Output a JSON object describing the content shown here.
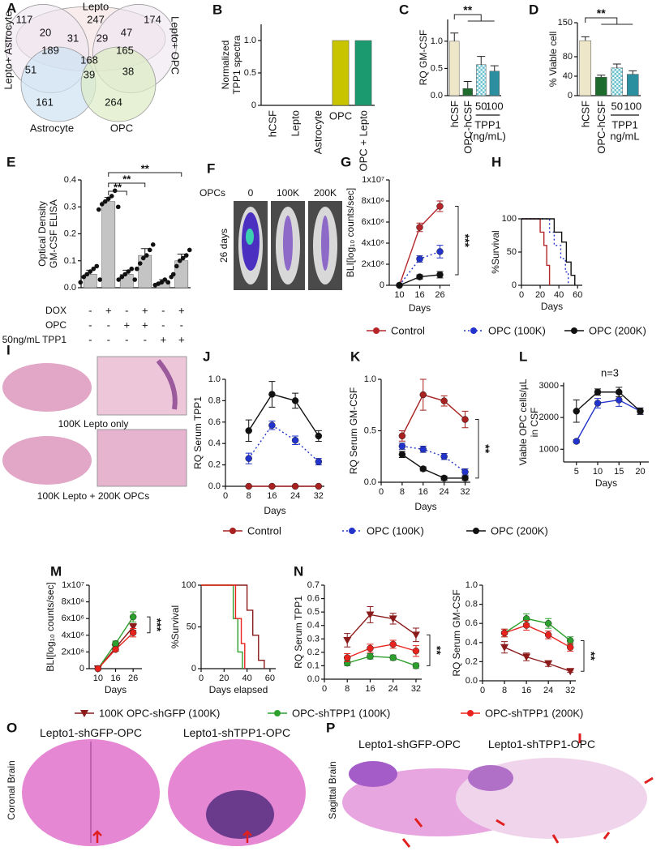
{
  "venn": {
    "panel": "A",
    "labels": [
      "Lepto",
      "Lepto+ Astrocyte",
      "Lepto+ OPC",
      "Astrocyte",
      "OPC"
    ],
    "counts": [
      117,
      247,
      174,
      20,
      31,
      29,
      47,
      189,
      165,
      168,
      51,
      39,
      38,
      161,
      264
    ]
  },
  "chart_data": [
    {
      "type": "bar",
      "panel": "B",
      "ylabel": [
        "Normalized",
        "TPP1 spectra"
      ],
      "categories": [
        "hCSF",
        "Lepto",
        "Astrocyte",
        "OPC",
        "OPC + Lepto"
      ],
      "values": [
        0,
        0,
        0,
        1,
        1
      ],
      "colors": [
        "#c8c400",
        "#c8c400",
        "#c8c400",
        "#c8c400",
        "#1a9a6e"
      ],
      "ylim": [
        0,
        1.25
      ],
      "yticks": [
        0,
        0.5,
        {
          "value": 1,
          "label": "1.0"
        }
      ]
    },
    {
      "type": "bar",
      "panel": "C",
      "ylabel": "RQ GM-CSF",
      "categories": [
        "hCSF",
        "OPC-hCSF",
        "50",
        "100"
      ],
      "values": [
        1.0,
        0.13,
        0.57,
        0.45
      ],
      "errors": [
        0.15,
        0.13,
        0.15,
        0.1
      ],
      "colors": [
        "#eee6c8",
        "#1e6b2e",
        "#6cc3cf",
        "#2c8f9f"
      ],
      "ylim": [
        0,
        1.4
      ],
      "yticks": [
        {
          "value": 0,
          "label": "0.0"
        },
        0.5,
        {
          "value": 1,
          "label": "1.0"
        }
      ],
      "group_label": [
        "TPP1",
        "(ng/mL)"
      ],
      "annotation": "**"
    },
    {
      "type": "bar",
      "panel": "D",
      "ylabel": "% Viable cell",
      "categories": [
        "hCSF",
        "OPC-hCSF",
        "50",
        "100"
      ],
      "values": [
        113,
        38,
        57,
        44
      ],
      "errors": [
        8,
        4,
        8,
        7
      ],
      "colors": [
        "#eee6c8",
        "#1e6b2e",
        "#6cc3cf",
        "#2c8f9f"
      ],
      "ylim": [
        0,
        150
      ],
      "yticks": [
        0,
        40,
        80,
        150
      ],
      "group_label": [
        "TPP1",
        "ng/mL"
      ],
      "annotation": "**"
    },
    {
      "type": "bar",
      "panel": "E",
      "ylabel": [
        "Optical Density",
        "GM-CSF ELISA"
      ],
      "values": [
        0.05,
        0.32,
        0.05,
        0.12,
        0.02,
        0.1
      ],
      "errors": [
        0.015,
        0.015,
        0.015,
        0.025,
        0.01,
        0.025
      ],
      "points": [
        [
          0.02,
          0.04,
          0.05,
          0.06,
          0.07,
          0.08,
          0.03
        ],
        [
          0.29,
          0.31,
          0.32,
          0.33,
          0.34,
          0.36,
          0.3
        ],
        [
          0.03,
          0.04,
          0.05,
          0.06,
          0.07,
          0.03
        ],
        [
          0.07,
          0.09,
          0.11,
          0.12,
          0.14,
          0.16
        ],
        [
          0.01,
          0.015,
          0.02,
          0.03,
          0.02,
          0.04
        ],
        [
          0.05,
          0.08,
          0.1,
          0.11,
          0.12,
          0.14
        ]
      ],
      "color": "#c4c4c4",
      "ylim": [
        0,
        0.4
      ],
      "yticks": [
        {
          "value": 0,
          "label": "0.0"
        },
        0.1,
        0.2,
        0.3,
        0.4
      ],
      "rows": [
        {
          "label": "DOX",
          "signs": [
            "-",
            "+",
            "-",
            "+",
            "-",
            "+"
          ]
        },
        {
          "label": "OPC",
          "signs": [
            "-",
            "-",
            "+",
            "+",
            "-",
            "-"
          ]
        },
        {
          "label": "50ng/mL TPP1",
          "signs": [
            "-",
            "-",
            "-",
            "-",
            "+",
            "+"
          ]
        }
      ],
      "annotations": [
        "**",
        "**",
        "**"
      ]
    },
    {
      "type": "line",
      "panel": "G",
      "ylabel": "BLI[log₁₀ counts/sec]",
      "xlabel": "Days",
      "categories": [
        "10",
        "16",
        "26"
      ],
      "series": [
        {
          "name": "Control",
          "color": "#b5262b",
          "values": [
            0,
            5500000,
            7500000
          ],
          "errors": [
            0,
            400000,
            500000
          ]
        },
        {
          "name": "OPC (100K)",
          "color": "#2233cc",
          "dash": true,
          "values": [
            0,
            2500000,
            3200000
          ],
          "errors": [
            0,
            300000,
            600000
          ]
        },
        {
          "name": "OPC (200K)",
          "color": "#111111",
          "values": [
            0,
            800000,
            1000000
          ],
          "errors": [
            0,
            200000,
            300000
          ]
        }
      ],
      "ylim": [
        0,
        10000000
      ],
      "yticks": [
        0,
        {
          "value": 2000000,
          "label": "2x10⁶"
        },
        {
          "value": 4000000,
          "label": "4x10⁶"
        },
        {
          "value": 6000000,
          "label": "6x10⁶"
        },
        {
          "value": 8000000,
          "label": "8x10⁶"
        },
        {
          "value": 10000000,
          "label": "1x10⁷"
        }
      ],
      "annotation": "***"
    },
    {
      "type": "step",
      "panel": "H",
      "ylabel": "%Survival",
      "xlabel": "Days",
      "series": [
        {
          "color": "#b5262b",
          "x": [
            0,
            20,
            20,
            24,
            24,
            27,
            27,
            30,
            30
          ],
          "values": [
            100,
            100,
            80,
            80,
            60,
            60,
            30,
            30,
            0
          ]
        },
        {
          "color": "#2233cc",
          "dash": true,
          "x": [
            0,
            30,
            30,
            35,
            35,
            42,
            42,
            47,
            47,
            50,
            50
          ],
          "values": [
            100,
            100,
            80,
            80,
            60,
            60,
            40,
            40,
            20,
            20,
            0
          ]
        },
        {
          "color": "#111111",
          "x": [
            0,
            35,
            35,
            43,
            43,
            48,
            48,
            53,
            53,
            57,
            57
          ],
          "values": [
            100,
            100,
            80,
            80,
            65,
            65,
            35,
            35,
            15,
            15,
            0
          ]
        }
      ],
      "xlim": [
        0,
        65
      ],
      "xticks": [
        0,
        20,
        40,
        60
      ],
      "ylim": [
        0,
        100
      ],
      "yticks": [
        0,
        50,
        100
      ]
    },
    {
      "type": "line",
      "panel": "J",
      "ylabel": "RQ Serum TPP1",
      "xlabel": "Days",
      "x": [
        8,
        16,
        24,
        32
      ],
      "series": [
        {
          "name": "Control",
          "color": "#a8201f",
          "values": [
            0,
            0,
            0,
            0
          ]
        },
        {
          "name": "OPC (100K)",
          "color": "#2233cc",
          "dash": true,
          "values": [
            0.26,
            0.57,
            0.43,
            0.23
          ],
          "errors": [
            0.05,
            0.04,
            0.04,
            0.03
          ]
        },
        {
          "name": "OPC (200K)",
          "color": "#111111",
          "values": [
            0.52,
            0.86,
            0.8,
            0.47
          ],
          "errors": [
            0.1,
            0.12,
            0.07,
            0.05
          ]
        }
      ],
      "xlim": [
        0,
        34
      ],
      "xticks": [
        0,
        8,
        16,
        24,
        32
      ],
      "ylim": [
        0,
        1.0
      ],
      "yticks": [
        {
          "value": 0,
          "label": "0.0"
        },
        0.2,
        0.4,
        0.6,
        0.8,
        {
          "value": 1,
          "label": "1.0"
        }
      ]
    },
    {
      "type": "line",
      "panel": "K",
      "ylabel": "RQ Serum GM-CSF",
      "xlabel": "Days",
      "x": [
        8,
        16,
        24,
        32
      ],
      "series": [
        {
          "color": "#a8201f",
          "values": [
            0.45,
            0.85,
            0.79,
            0.61
          ],
          "errors": [
            0.05,
            0.15,
            0.05,
            0.08
          ]
        },
        {
          "color": "#2233cc",
          "dash": true,
          "values": [
            0.35,
            0.32,
            0.25,
            0.1
          ],
          "errors": [
            0.03,
            0.03,
            0.03,
            0.03
          ]
        },
        {
          "color": "#111111",
          "values": [
            0.27,
            0.13,
            0.04,
            0.04
          ],
          "errors": [
            0.03,
            0.02,
            0.02,
            0.02
          ]
        }
      ],
      "xlim": [
        0,
        34
      ],
      "xticks": [
        0,
        8,
        16,
        24,
        32
      ],
      "ylim": [
        0,
        1.0
      ],
      "yticks": [
        {
          "value": 0,
          "label": "0.0"
        },
        0.5,
        {
          "value": 1,
          "label": "1.0"
        }
      ],
      "annotation": "**"
    },
    {
      "type": "line",
      "panel": "L",
      "ylabel": [
        "Viable OPC cells/µL",
        "in CSF"
      ],
      "xlabel": "Days",
      "x": [
        5,
        10,
        15,
        20
      ],
      "series": [
        {
          "color": "#2233cc",
          "values": [
            1250,
            2450,
            2550,
            2200
          ],
          "errors": [
            50,
            150,
            200,
            100
          ]
        },
        {
          "color": "#111111",
          "values": [
            2200,
            2800,
            2800,
            2200
          ],
          "errors": [
            350,
            100,
            150,
            100
          ]
        }
      ],
      "xlim": [
        2,
        22
      ],
      "xticks": [
        5,
        10,
        15,
        20
      ],
      "ylim": [
        600,
        3100
      ],
      "yticks": [
        1000,
        2000,
        3000
      ],
      "annotation": "n=3"
    },
    {
      "type": "line",
      "panel": "M",
      "ylabel": "BLI[log₁₀ counts/sec]",
      "xlabel": "Days",
      "categories": [
        "10",
        "16",
        "26"
      ],
      "series": [
        {
          "name": "100K OPC-shGFP (100K)",
          "color": "#8b1a1a",
          "marker": "triangle",
          "values": [
            0,
            2500000,
            5000000
          ],
          "errors": [
            0,
            300000,
            400000
          ]
        },
        {
          "name": "OPC-shTPP1 (100K)",
          "color": "#2ca02c",
          "values": [
            0,
            3000000,
            6200000
          ],
          "errors": [
            0,
            300000,
            600000
          ]
        },
        {
          "name": "OPC-shTPP1 (200K)",
          "color": "#e8231e",
          "values": [
            0,
            2300000,
            4300000
          ],
          "errors": [
            0,
            200000,
            500000
          ]
        }
      ],
      "ylim": [
        0,
        10000000
      ],
      "yticks": [
        0,
        {
          "value": 2000000,
          "label": "2x10⁶"
        },
        {
          "value": 4000000,
          "label": "4x10⁶"
        },
        {
          "value": 6000000,
          "label": "6x10⁶"
        },
        {
          "value": 8000000,
          "label": "8x10⁶"
        },
        {
          "value": 10000000,
          "label": "1x10⁷"
        }
      ],
      "annotation": "***"
    },
    {
      "type": "step",
      "ylabel": "%Survival",
      "xlabel": "Days elapsed",
      "series": [
        {
          "color": "#8b1a1a",
          "x": [
            0,
            40,
            40,
            45,
            45,
            50,
            50,
            55,
            55
          ],
          "values": [
            100,
            100,
            70,
            70,
            40,
            40,
            10,
            10,
            0
          ]
        },
        {
          "color": "#2ca02c",
          "x": [
            0,
            28,
            28,
            32,
            32,
            36,
            36
          ],
          "values": [
            100,
            100,
            60,
            60,
            20,
            20,
            0
          ]
        },
        {
          "color": "#e8231e",
          "x": [
            0,
            30,
            30,
            35,
            35,
            38,
            38
          ],
          "values": [
            100,
            100,
            60,
            60,
            30,
            30,
            0
          ]
        }
      ],
      "xlim": [
        0,
        65
      ],
      "xticks": [
        0,
        20,
        40,
        60
      ],
      "ylim": [
        0,
        100
      ],
      "yticks": [
        0,
        50,
        100
      ]
    },
    {
      "type": "line",
      "panel": "N",
      "ylabel": "RQ Serum TPP1",
      "x": [
        8,
        16,
        24,
        32
      ],
      "series": [
        {
          "color": "#8b1a1a",
          "marker": "triangle",
          "values": [
            0.29,
            0.48,
            0.45,
            0.33
          ],
          "errors": [
            0.05,
            0.06,
            0.04,
            0.05
          ]
        },
        {
          "color": "#2ca02c",
          "values": [
            0.12,
            0.17,
            0.16,
            0.1
          ],
          "errors": [
            0.02,
            0.02,
            0.02,
            0.02
          ]
        },
        {
          "color": "#e8231e",
          "values": [
            0.16,
            0.23,
            0.26,
            0.21
          ],
          "errors": [
            0.03,
            0.03,
            0.03,
            0.04
          ]
        }
      ],
      "xlim": [
        0,
        34
      ],
      "xticks": [
        0,
        8,
        16,
        24,
        32
      ],
      "ylim": [
        0,
        0.7
      ],
      "yticks": [
        {
          "value": 0,
          "label": "0.0"
        },
        0.1,
        0.2,
        0.3,
        0.4,
        0.5,
        0.6,
        0.7
      ],
      "annotation": "**"
    },
    {
      "type": "line",
      "ylabel": "RQ Serum GM-CSF",
      "x": [
        8,
        16,
        24,
        32
      ],
      "series": [
        {
          "color": "#8b1a1a",
          "marker": "triangle",
          "values": [
            0.35,
            0.25,
            0.18,
            0.1
          ],
          "errors": [
            0.06,
            0.04,
            0.03,
            0.01
          ]
        },
        {
          "color": "#2ca02c",
          "values": [
            0.5,
            0.65,
            0.6,
            0.42
          ],
          "errors": [
            0.04,
            0.05,
            0.05,
            0.04
          ]
        },
        {
          "color": "#e8231e",
          "values": [
            0.5,
            0.58,
            0.48,
            0.35
          ],
          "errors": [
            0.04,
            0.05,
            0.04,
            0.04
          ]
        }
      ],
      "xlim": [
        0,
        34
      ],
      "xticks": [
        0,
        8,
        16,
        24,
        32
      ],
      "ylim": [
        0,
        1.0
      ],
      "yticks": [
        {
          "value": 0,
          "label": "0.0"
        },
        0.2,
        0.4,
        0.6,
        0.8,
        {
          "value": 1,
          "label": "1.0"
        }
      ],
      "annotation": "**"
    }
  ],
  "mice_images": {
    "panel": "F",
    "row_label": "OPCs",
    "columns": [
      "0",
      "100K",
      "200K"
    ],
    "side_label": "26 days"
  },
  "histology": {
    "panel": "I",
    "captions": [
      "100K Lepto only",
      "100K Lepto + 200K OPCs"
    ]
  },
  "coronal": {
    "panel": "O",
    "axis_label": "Coronal Brain",
    "captions": [
      "Lepto1-shGFP-OPC",
      "Lepto1-shTPP1-OPC"
    ]
  },
  "sagittal": {
    "panel": "P",
    "axis_label": "Sagittal Brain",
    "captions": [
      "Lepto1-shGFP-OPC",
      "Lepto1-shTPP1-OPC"
    ]
  }
}
